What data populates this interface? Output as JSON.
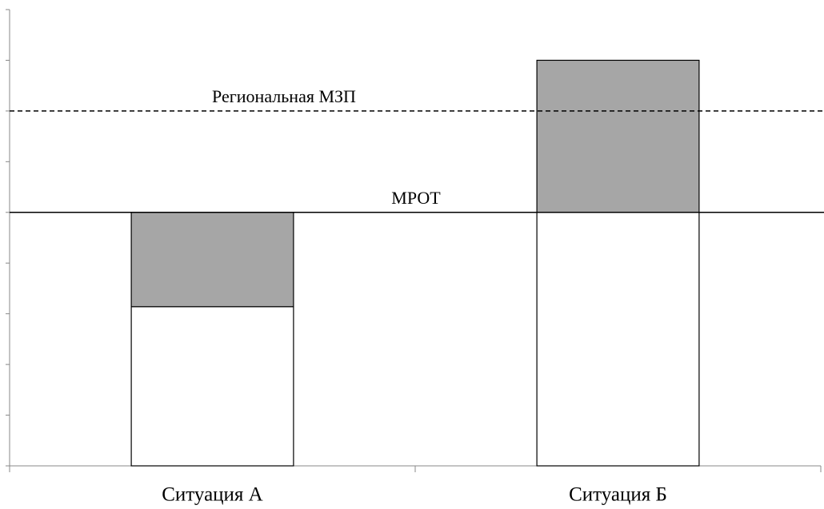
{
  "chart_data": {
    "type": "stacked_bar",
    "categories": [
      "Ситуация А",
      "Ситуация Б"
    ],
    "series": [
      {
        "color": "#ffffff",
        "values": [
          3.14,
          5
        ]
      },
      {
        "color": "#a6a6a6",
        "values": [
          1.86,
          3
        ]
      }
    ],
    "ylim": [
      0,
      9
    ],
    "yticks": [
      0,
      1,
      2,
      3,
      4,
      5,
      6,
      7,
      8,
      9
    ],
    "reference_lines": [
      {
        "label": "Региональная МЗП",
        "value": 7,
        "style": "dashed"
      },
      {
        "label": "МРОТ",
        "value": 5,
        "style": "solid"
      }
    ]
  }
}
